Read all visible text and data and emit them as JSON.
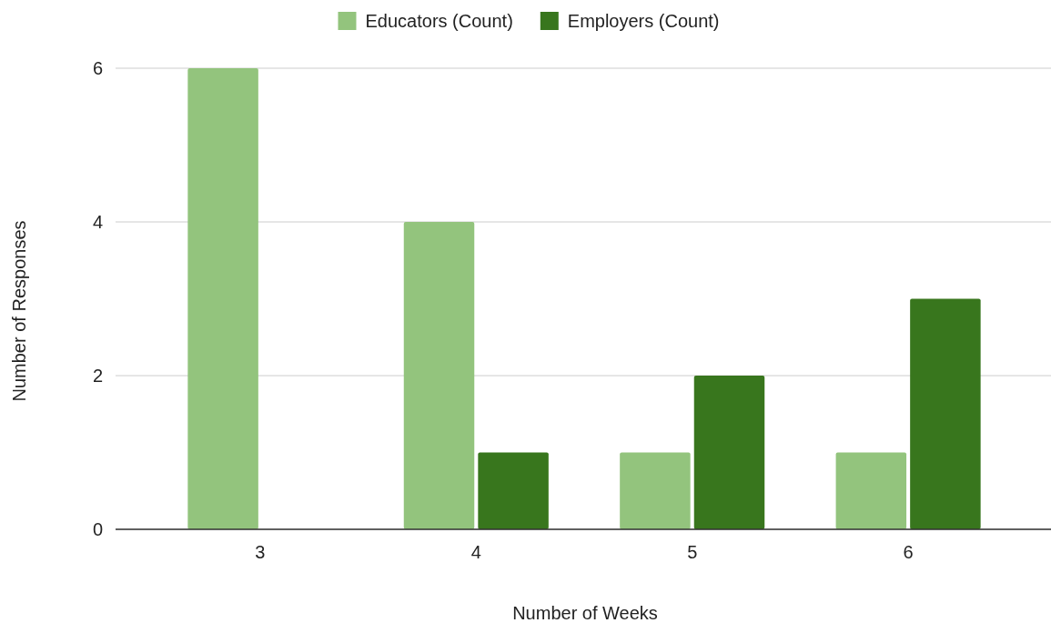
{
  "chart_data": {
    "type": "bar",
    "xlabel": "Number of Weeks",
    "ylabel": "Number of Responses",
    "categories": [
      "3",
      "4",
      "5",
      "6"
    ],
    "series": [
      {
        "name": "Educators (Count)",
        "color": "#93c47d",
        "values": [
          6,
          4,
          1,
          1
        ]
      },
      {
        "name": "Employers (Count)",
        "color": "#38761d",
        "values": [
          null,
          1,
          2,
          3
        ]
      }
    ],
    "ylim": [
      0,
      6
    ],
    "yticks": [
      0,
      2,
      4,
      6
    ],
    "grid": "y",
    "legend": "top"
  }
}
